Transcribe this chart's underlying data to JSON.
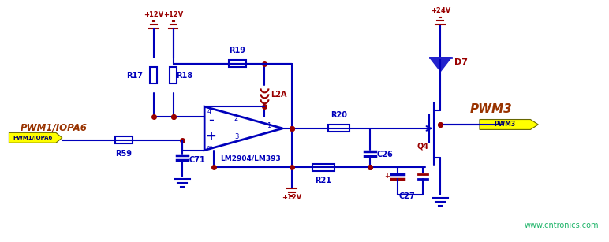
{
  "bg_color": "#ffffff",
  "line_color": "#0000bb",
  "dark_line": "#000066",
  "red_color": "#990000",
  "yellow_color": "#ffff00",
  "text_blue": "#0000cc",
  "text_red": "#993300",
  "watermark": "www.cntronics.com",
  "watermark_color": "#00aa55",
  "pwm1_label": "PWM1/IOPA6",
  "pwm3_label": "PWM3",
  "pwm1_tag": "PWM1/IOPA6",
  "pwm3_tag": "PWM3",
  "R17": "R17",
  "R18": "R18",
  "R19": "R19",
  "R20": "R20",
  "R21": "R21",
  "R59": "R59",
  "C71": "C71",
  "C26": "C26",
  "C27": "C27",
  "L2A": "L2A",
  "D7": "D7",
  "Q4": "Q4",
  "IC": "LM2904/LM393",
  "V12": "+12V",
  "V24": "+24V",
  "fig_width": 7.72,
  "fig_height": 3.07,
  "dpi": 100
}
